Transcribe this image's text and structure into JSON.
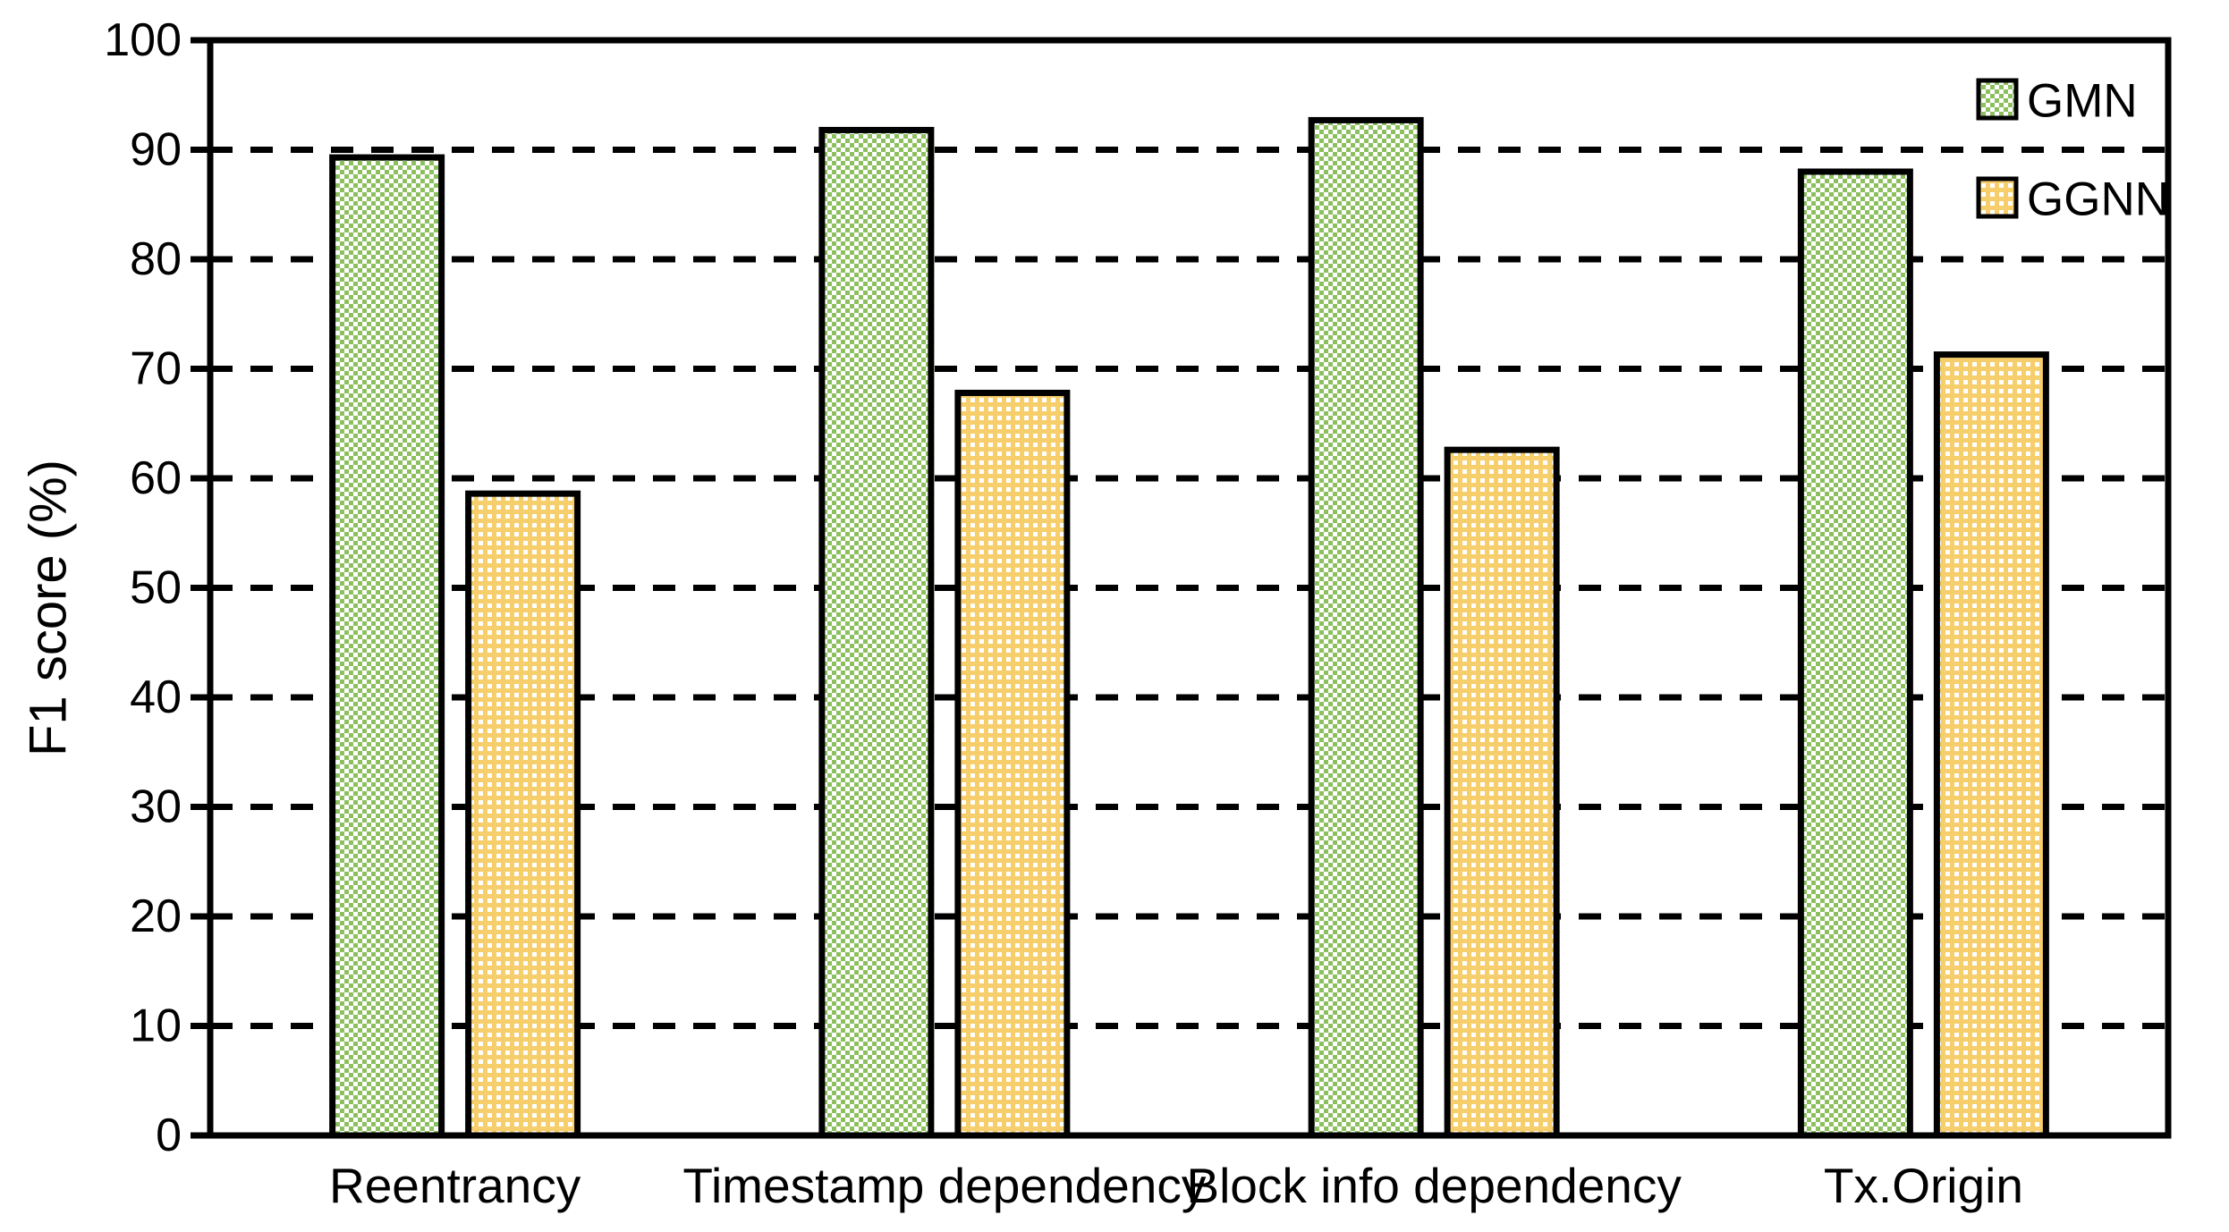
{
  "chart_data": {
    "type": "bar",
    "title": "",
    "xlabel": "",
    "ylabel": "F1 score (%)",
    "categories": [
      "Reentrancy",
      "Timestamp dependency",
      "Block info dependency",
      "Tx.Origin"
    ],
    "series": [
      {
        "name": "GMN",
        "color": "#8CC05F",
        "pattern": "checkerboard",
        "values": [
          89.3,
          91.8,
          92.7,
          88.0
        ]
      },
      {
        "name": "GGNN",
        "color": "#F6CE6B",
        "pattern": "plus-lattice-white-dots",
        "values": [
          58.6,
          67.8,
          62.6,
          71.3
        ]
      }
    ],
    "ylim": [
      0,
      100
    ],
    "yticks": [
      0,
      10,
      20,
      30,
      40,
      50,
      60,
      70,
      80,
      90,
      100
    ],
    "grid": "horizontal-dashed",
    "legend_position": "top-right-inside",
    "axis_color": "#000000",
    "background_color": "#ffffff"
  }
}
